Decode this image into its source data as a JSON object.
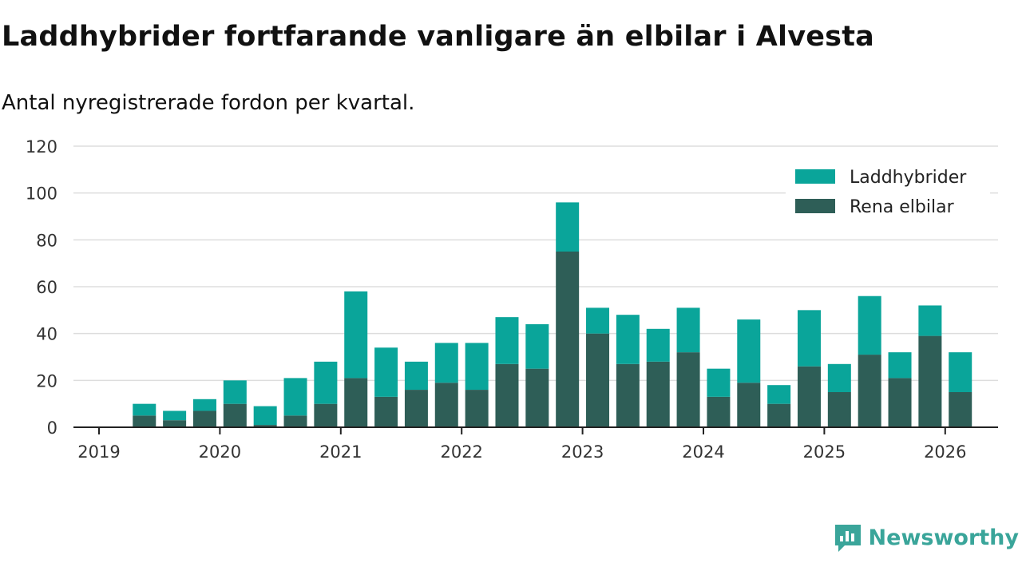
{
  "header": {
    "title": "Laddhybrider fortfarande vanligare än elbilar i Alvesta",
    "subtitle": "Antal nyregistrerade fordon per kvartal."
  },
  "chart_data": {
    "type": "bar",
    "stacked": true,
    "title": "Laddhybrider fortfarande vanligare än elbilar i Alvesta",
    "subtitle": "Antal nyregistrerade fordon per kvartal.",
    "xlabel": "",
    "ylabel": "",
    "ylim": [
      0,
      120
    ],
    "yticks": [
      0,
      20,
      40,
      60,
      80,
      100,
      120
    ],
    "xticks": [
      "2019",
      "2020",
      "2021",
      "2022",
      "2023",
      "2024",
      "2025",
      "2026"
    ],
    "grid": true,
    "legend_position": "top-right",
    "categories": [
      "2019 Q2",
      "2019 Q3",
      "2019 Q4",
      "2020 Q1",
      "2020 Q2",
      "2020 Q3",
      "2020 Q4",
      "2021 Q1",
      "2021 Q2",
      "2021 Q3",
      "2021 Q4",
      "2022 Q1",
      "2022 Q2",
      "2022 Q3",
      "2022 Q4",
      "2023 Q1",
      "2023 Q2",
      "2023 Q3",
      "2023 Q4",
      "2024 Q1",
      "2024 Q2",
      "2024 Q3",
      "2024 Q4",
      "2025 Q1",
      "2025 Q2",
      "2025 Q3",
      "2025 Q4",
      "2026 Q1"
    ],
    "series": [
      {
        "name": "Rena elbilar",
        "color": "#2e5e57",
        "values": [
          5,
          3,
          7,
          10,
          1,
          5,
          10,
          21,
          13,
          16,
          19,
          16,
          27,
          25,
          75,
          40,
          27,
          28,
          32,
          13,
          19,
          10,
          26,
          15,
          31,
          21,
          39,
          15
        ]
      },
      {
        "name": "Laddhybrider",
        "color": "#0aa59a",
        "values": [
          5,
          4,
          5,
          10,
          8,
          16,
          18,
          37,
          21,
          12,
          17,
          20,
          20,
          19,
          21,
          11,
          21,
          14,
          19,
          12,
          27,
          8,
          24,
          12,
          25,
          11,
          13,
          17
        ]
      }
    ]
  },
  "brand": {
    "name": "Newsworthy",
    "color": "#3aa59a"
  }
}
